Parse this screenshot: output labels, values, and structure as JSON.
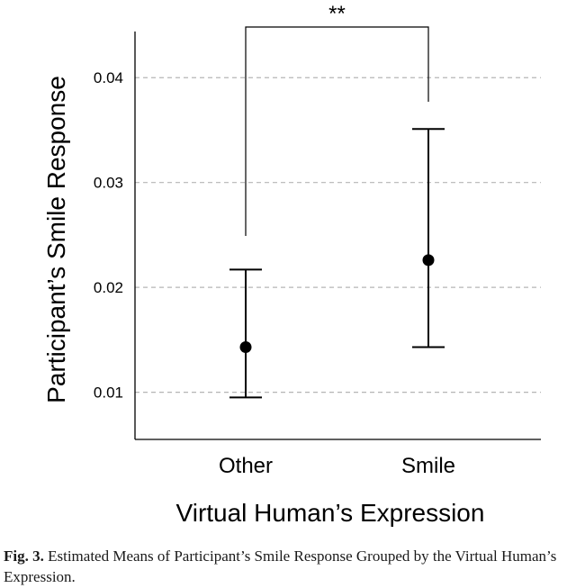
{
  "chart_data": {
    "type": "scatter",
    "title": "",
    "xlabel": "Virtual Human’s Expression",
    "ylabel": "Participant’s Smile Response",
    "categories": [
      "Other",
      "Smile"
    ],
    "series": [
      {
        "values": [
          0.0143,
          0.0226
        ],
        "error_low": [
          0.0095,
          0.0143
        ],
        "error_high": [
          0.0217,
          0.0351
        ]
      }
    ],
    "ylim": [
      0.0055,
      0.0444
    ],
    "yticks": [
      "0.01",
      "0.02",
      "0.03",
      "0.04"
    ],
    "ytick_values": [
      0.01,
      0.02,
      0.03,
      0.04
    ],
    "grid": "horizontal dashed",
    "significance": {
      "between": [
        "Other",
        "Smile"
      ],
      "label": "**"
    },
    "colors": {
      "marker": "#000000",
      "grid": "#b5b5b5"
    }
  },
  "caption": {
    "label": "Fig. 3.",
    "text": "Estimated Means of Participant’s Smile Response Grouped by the Virtual Human’s Expression."
  }
}
